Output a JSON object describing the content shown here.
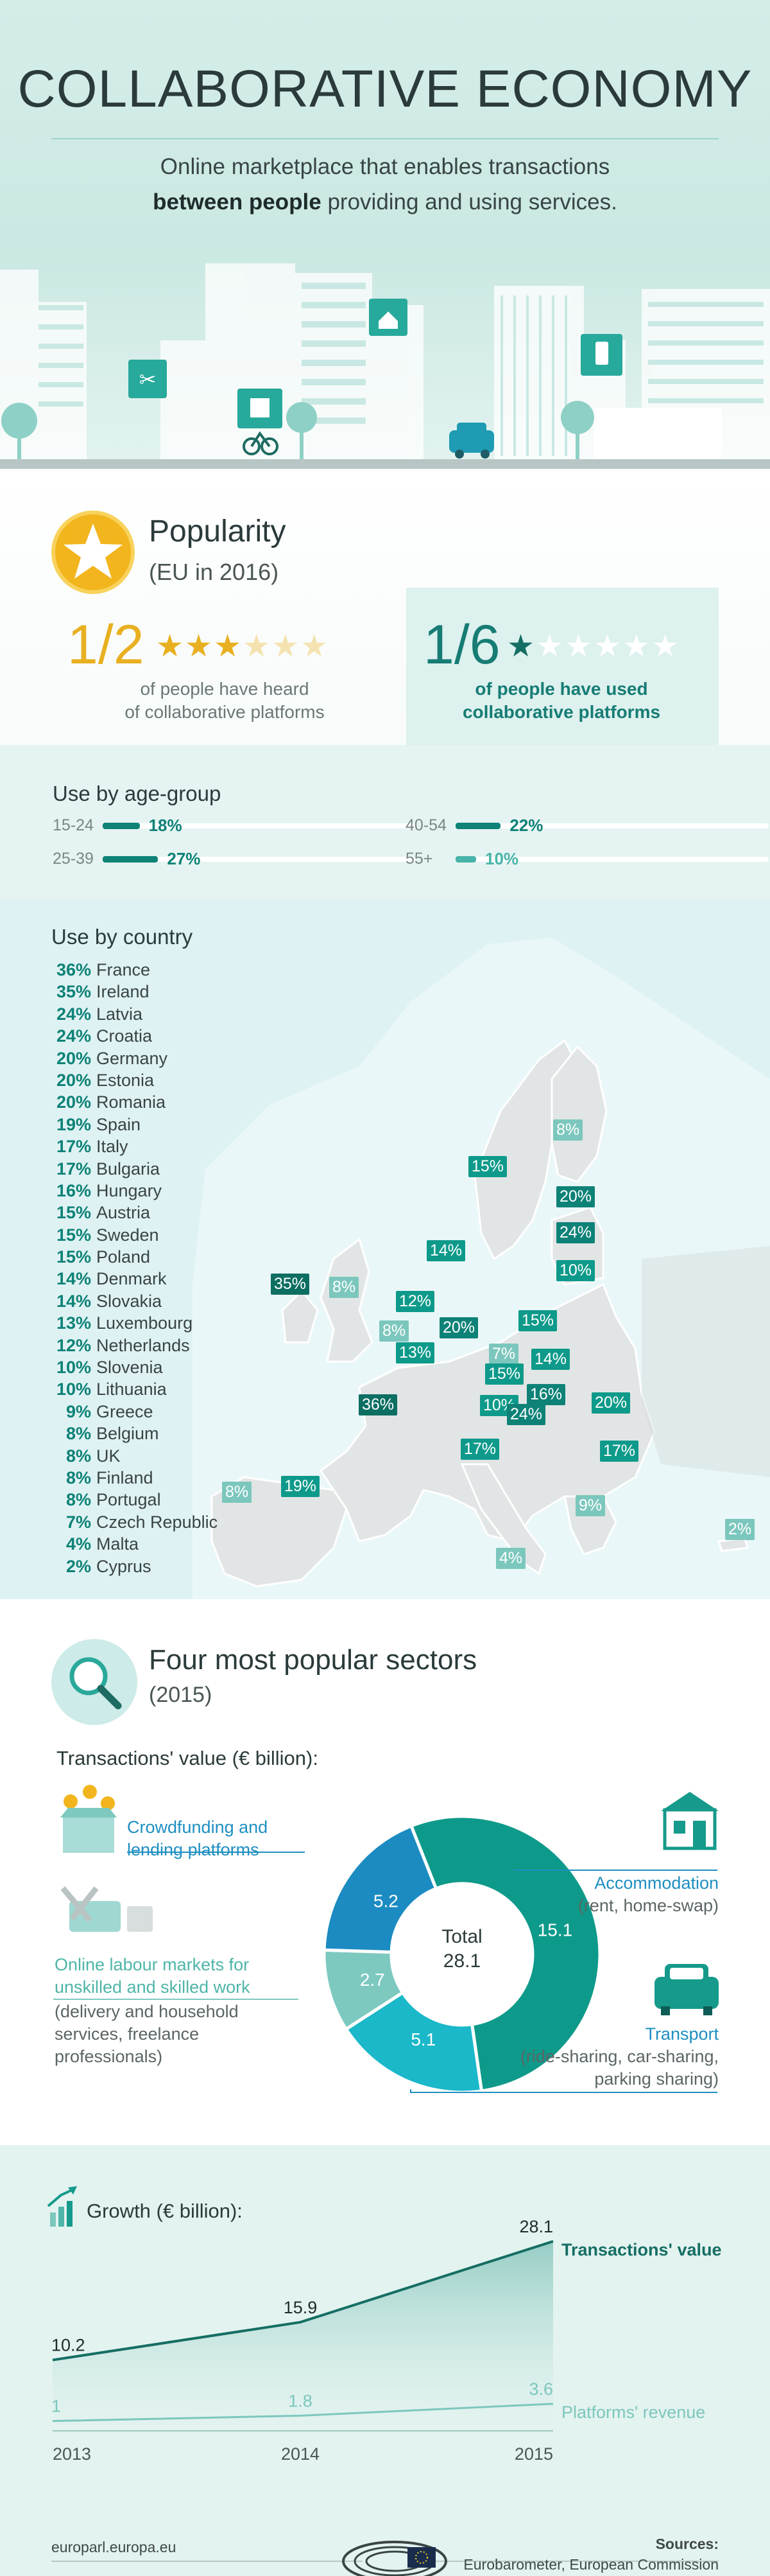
{
  "header": {
    "title": "COLLABORATIVE ECONOMY",
    "subtitle_line1": "Online marketplace that enables transactions",
    "subtitle_bold": "between people",
    "subtitle_rest": " providing and using services."
  },
  "popularity": {
    "title": "Popularity",
    "subtitle": "(EU in 2016)",
    "stat1": {
      "fraction": "1/2",
      "filled_stars": 3,
      "total_stars": 6,
      "desc_line1": "of people have heard",
      "desc_line2": "of collaborative platforms"
    },
    "stat2": {
      "fraction": "1/6",
      "filled_stars": 1,
      "total_stars": 6,
      "desc_line1": "of people have used",
      "desc_line2": "collaborative platforms"
    }
  },
  "age_groups": {
    "title": "Use by age-group",
    "items": [
      {
        "label": "15-24",
        "value": 18,
        "display": "18%"
      },
      {
        "label": "25-39",
        "value": 27,
        "display": "27%"
      },
      {
        "label": "40-54",
        "value": 22,
        "display": "22%"
      },
      {
        "label": "55+",
        "value": 10,
        "display": "10%"
      }
    ]
  },
  "countries": {
    "title": "Use by country",
    "items": [
      {
        "pct": "36%",
        "name": "France"
      },
      {
        "pct": "35%",
        "name": "Ireland"
      },
      {
        "pct": "24%",
        "name": "Latvia"
      },
      {
        "pct": "24%",
        "name": "Croatia"
      },
      {
        "pct": "20%",
        "name": "Germany"
      },
      {
        "pct": "20%",
        "name": "Estonia"
      },
      {
        "pct": "20%",
        "name": "Romania"
      },
      {
        "pct": "19%",
        "name": "Spain"
      },
      {
        "pct": "17%",
        "name": "Italy"
      },
      {
        "pct": "17%",
        "name": "Bulgaria"
      },
      {
        "pct": "16%",
        "name": "Hungary"
      },
      {
        "pct": "15%",
        "name": "Austria"
      },
      {
        "pct": "15%",
        "name": "Sweden"
      },
      {
        "pct": "15%",
        "name": "Poland"
      },
      {
        "pct": "14%",
        "name": "Denmark"
      },
      {
        "pct": "14%",
        "name": "Slovakia"
      },
      {
        "pct": "13%",
        "name": "Luxembourg"
      },
      {
        "pct": "12%",
        "name": "Netherlands"
      },
      {
        "pct": "10%",
        "name": "Slovenia"
      },
      {
        "pct": "10%",
        "name": "Lithuania"
      },
      {
        "pct": "9%",
        "name": "Greece"
      },
      {
        "pct": "8%",
        "name": "Belgium"
      },
      {
        "pct": "8%",
        "name": "UK"
      },
      {
        "pct": "8%",
        "name": "Finland"
      },
      {
        "pct": "8%",
        "name": "Portugal"
      },
      {
        "pct": "7%",
        "name": "Czech Republic"
      },
      {
        "pct": "4%",
        "name": "Malta"
      },
      {
        "pct": "2%",
        "name": "Cyprus"
      }
    ]
  },
  "sectors": {
    "title": "Four most popular sectors",
    "subtitle": "(2015)",
    "transactions_label": "Transactions' value (€ billion):",
    "total_label": "Total",
    "total_value": "28.1",
    "chart_data": {
      "type": "pie",
      "title": "Transactions' value (€ billion):",
      "categories": [
        "Accommodation",
        "Transport",
        "Online labour markets for unskilled and skilled work",
        "Crowdfunding and lending platforms"
      ],
      "values": [
        15.1,
        5.1,
        2.7,
        5.2
      ],
      "labels": [
        "15.1",
        "5.1",
        "2.7",
        "5.2"
      ],
      "colors": [
        "#0e9a8a",
        "#1ab8c9",
        "#7dc9c0",
        "#1b8bc2"
      ],
      "total": 28.1
    },
    "accommodation": {
      "title": "Accommodation",
      "desc": "(rent, home-swap)"
    },
    "transport": {
      "title": "Transport",
      "desc_line1": "(ride-sharing, car-sharing,",
      "desc_line2": "parking sharing)"
    },
    "crowdfunding": {
      "title_line1": "Crowdfunding and",
      "title_line2": "lending platforms"
    },
    "labour": {
      "title_line1": "Online labour markets for",
      "title_line2": "unskilled and skilled work",
      "desc_line1": "(delivery and household",
      "desc_line2": "services, freelance",
      "desc_line3": "professionals)"
    }
  },
  "growth": {
    "title": "Growth (€ billion):",
    "chart_data": {
      "type": "line",
      "title": "Growth (€ billion):",
      "x": [
        "2013",
        "2014",
        "2015"
      ],
      "series": [
        {
          "name": "Transactions' value",
          "values": [
            10.2,
            15.9,
            28.1
          ],
          "labels": [
            "10.2",
            "15.9",
            "28.1"
          ],
          "color": "#156e63"
        },
        {
          "name": "Platforms' revenue",
          "values": [
            1,
            1.8,
            3.6
          ],
          "labels": [
            "1",
            "1.8",
            "3.6"
          ],
          "color": "#7cc7bd"
        }
      ],
      "ylim": [
        0,
        30
      ]
    }
  },
  "footer": {
    "site": "europarl.europa.eu",
    "sources_label": "Sources:",
    "sources": "Eurobarometer, European Commission"
  }
}
